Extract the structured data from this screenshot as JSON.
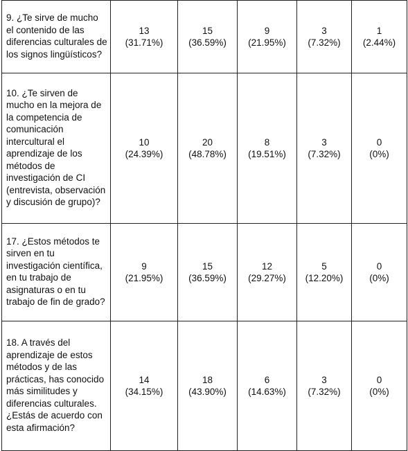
{
  "rows": [
    {
      "question": "9.  ¿Te sirve de mucho el contenido de las diferencias culturales de los signos lingüísticos?",
      "cells": [
        {
          "count": "13",
          "percent": "(31.71%)"
        },
        {
          "count": "15",
          "percent": "(36.59%)"
        },
        {
          "count": "9",
          "percent": "(21.95%)"
        },
        {
          "count": "3",
          "percent": "(7.32%)"
        },
        {
          "count": "1",
          "percent": "(2.44%)"
        }
      ]
    },
    {
      "question": "10.  ¿Te sirven de mucho en la mejora de la competencia de comunicación intercultural el aprendizaje de los métodos de investigación de CI (entrevista, observación y discusión de grupo)?",
      "cells": [
        {
          "count": "10",
          "percent": "(24.39%)"
        },
        {
          "count": "20",
          "percent": "(48.78%)"
        },
        {
          "count": "8",
          "percent": "(19.51%)"
        },
        {
          "count": "3",
          "percent": "(7.32%)"
        },
        {
          "count": "0",
          "percent": "(0%)"
        }
      ]
    },
    {
      "question": "17.  ¿Estos métodos te sirven en tu investigación científica, en tu trabajo de asignaturas o en tu trabajo de fin de grado?",
      "cells": [
        {
          "count": "9",
          "percent": "(21.95%)"
        },
        {
          "count": "15",
          "percent": "(36.59%)"
        },
        {
          "count": "12",
          "percent": "(29.27%)"
        },
        {
          "count": "5",
          "percent": "(12.20%)"
        },
        {
          "count": "0",
          "percent": "(0%)"
        }
      ]
    },
    {
      "question": "18.  A través del aprendizaje de estos métodos y de las prácticas, has conocido más similitudes y diferencias culturales. ¿Estás de acuerdo con esta afirmación?",
      "cells": [
        {
          "count": "14",
          "percent": "(34.15%)"
        },
        {
          "count": "18",
          "percent": "(43.90%)"
        },
        {
          "count": "6",
          "percent": "(14.63%)"
        },
        {
          "count": "3",
          "percent": "(7.32%)"
        },
        {
          "count": "0",
          "percent": "(0%)"
        }
      ]
    }
  ]
}
